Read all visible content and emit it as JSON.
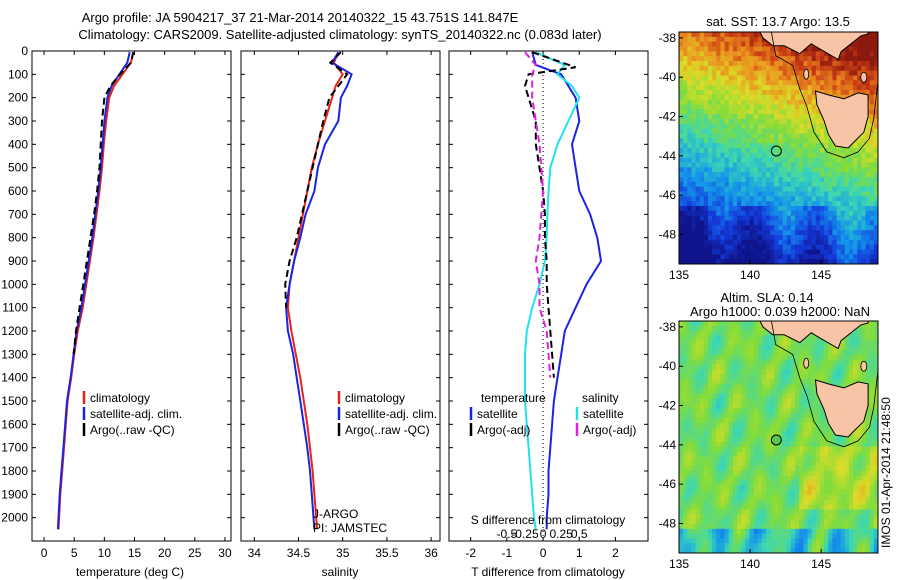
{
  "figure": {
    "title_line1": "Argo profile: JA 5904217_37 21-Mar-2014 20140322_15 43.751S 141.847E",
    "title_line2": "Climatology: CARS2009. Satellite-adjusted climatology: synTS_20140322.nc (0.083d later)",
    "credit": "IMOS 01-Apr-2014 21:48:50",
    "footer_line1": "J-ARGO",
    "footer_line2": "PI: JAMSTEC",
    "colors": {
      "climatology": "#e8231a",
      "satellite": "#1a25e0",
      "argo": "#000000",
      "t_sat": "#1a25e0",
      "s_sat": "#22e0ee",
      "s_argo": "#e020e0"
    }
  },
  "chart_data": [
    {
      "type": "line",
      "xlabel": "temperature (deg C)",
      "ylim": [
        2100,
        0
      ],
      "xlim": [
        -2,
        31
      ],
      "xticks": [
        0,
        5,
        10,
        15,
        20,
        25,
        30
      ],
      "yticks": [
        0,
        100,
        200,
        300,
        400,
        500,
        600,
        700,
        800,
        900,
        1000,
        1100,
        1200,
        1300,
        1400,
        1500,
        1600,
        1700,
        1800,
        1900,
        2000
      ],
      "legend": [
        "climatology",
        "satellite-adj. clim.",
        "Argo(..raw -QC)"
      ],
      "series": [
        {
          "name": "climatology",
          "color": "#e8231a",
          "dash": false,
          "x": [
            14.8,
            14.4,
            13.0,
            11.6,
            10.8,
            10.3,
            9.9,
            9.6,
            9.2,
            8.7,
            8.2,
            7.6,
            7.0,
            6.4,
            5.6,
            5.0,
            4.5,
            3.9,
            3.6,
            3.3,
            3.0,
            2.7,
            2.5,
            2.4
          ],
          "y": [
            5,
            50,
            100,
            150,
            200,
            300,
            400,
            500,
            600,
            700,
            800,
            900,
            1000,
            1100,
            1200,
            1300,
            1400,
            1500,
            1600,
            1700,
            1800,
            1900,
            2000,
            2050
          ]
        },
        {
          "name": "satellite-adj. clim.",
          "color": "#1a25e0",
          "dash": false,
          "x": [
            14.2,
            13.8,
            12.5,
            11.2,
            10.5,
            10.0,
            9.7,
            9.4,
            9.0,
            8.5,
            8.0,
            7.4,
            6.8,
            6.2,
            5.4,
            4.9,
            4.4,
            3.8,
            3.5,
            3.2,
            2.9,
            2.6,
            2.4,
            2.3
          ],
          "y": [
            5,
            50,
            100,
            150,
            200,
            300,
            400,
            500,
            600,
            700,
            800,
            900,
            1000,
            1100,
            1200,
            1300,
            1400,
            1500,
            1600,
            1700,
            1800,
            1900,
            2000,
            2050
          ]
        },
        {
          "name": "Argo(..raw -QC)",
          "color": "#000000",
          "dash": true,
          "x": [
            14.8,
            14.4,
            12.6,
            11.0,
            10.0,
            9.6,
            9.4,
            9.2,
            8.8,
            8.3,
            7.7,
            7.1,
            6.5,
            5.9,
            5.3,
            4.9
          ],
          "y": [
            5,
            50,
            100,
            150,
            200,
            300,
            400,
            500,
            600,
            700,
            800,
            900,
            1000,
            1100,
            1200,
            1300
          ]
        }
      ]
    },
    {
      "type": "line",
      "xlabel": "salinity",
      "ylim": [
        2100,
        0
      ],
      "xlim": [
        33.85,
        36.1
      ],
      "xticks": [
        34,
        34.5,
        35,
        35.5,
        36
      ],
      "legend": [
        "climatology",
        "satellite-adj. clim.",
        "Argo(..raw -QC)"
      ],
      "series": [
        {
          "name": "climatology",
          "color": "#e8231a",
          "dash": false,
          "x": [
            34.95,
            34.9,
            35.0,
            34.92,
            34.88,
            34.8,
            34.72,
            34.65,
            34.6,
            34.55,
            34.5,
            34.45,
            34.4,
            34.38,
            34.42,
            34.47,
            34.52,
            34.56,
            34.6,
            34.63,
            34.66,
            34.68,
            34.7,
            34.71
          ],
          "y": [
            5,
            50,
            100,
            150,
            200,
            300,
            400,
            500,
            600,
            700,
            800,
            900,
            1000,
            1100,
            1200,
            1300,
            1400,
            1500,
            1600,
            1700,
            1800,
            1900,
            2000,
            2050
          ]
        },
        {
          "name": "satellite-adj. clim.",
          "color": "#1a25e0",
          "dash": false,
          "x": [
            34.95,
            34.88,
            35.1,
            35.05,
            34.98,
            34.95,
            34.8,
            34.72,
            34.68,
            34.58,
            34.52,
            34.45,
            34.4,
            34.36,
            34.38,
            34.44,
            34.48,
            34.52,
            34.56,
            34.6,
            34.63,
            34.65,
            34.67,
            34.68
          ],
          "y": [
            5,
            50,
            100,
            150,
            200,
            300,
            400,
            500,
            600,
            700,
            800,
            900,
            1000,
            1100,
            1200,
            1300,
            1400,
            1500,
            1600,
            1700,
            1800,
            1900,
            2000,
            2050
          ]
        },
        {
          "name": "Argo(..raw -QC)",
          "color": "#000000",
          "dash": true,
          "x": [
            34.98,
            34.86,
            35.05,
            34.95,
            34.85,
            34.78,
            34.72,
            34.66,
            34.6,
            34.54,
            34.48,
            34.4,
            34.35,
            34.36
          ],
          "y": [
            5,
            50,
            100,
            150,
            200,
            300,
            400,
            500,
            600,
            700,
            800,
            900,
            1000,
            1100
          ]
        }
      ]
    },
    {
      "type": "line",
      "xlabel": "T difference from climatology",
      "xlabel_top": "S difference from climatology",
      "ylim": [
        2100,
        0
      ],
      "xlim": [
        -2.6,
        2.9
      ],
      "xticks": [
        -2,
        -1,
        0,
        1,
        2
      ],
      "xticks_top": [
        -0.5,
        -0.25,
        0,
        0.25,
        0.5
      ],
      "legend_left_title": "temperature",
      "legend_right_title": "salinity",
      "legend_left": [
        "satellite",
        "Argo(-adj)"
      ],
      "legend_right": [
        "satellite",
        "Argo(-adj)"
      ],
      "series": [
        {
          "name": "T satellite",
          "color": "#1a25e0",
          "dash": false,
          "x": [
            -0.3,
            -0.2,
            0.5,
            0.7,
            0.9,
            1.0,
            0.8,
            0.9,
            1.0,
            1.3,
            1.5,
            1.6,
            1.2,
            0.9,
            0.6,
            0.5,
            0.4,
            0.3,
            0.25,
            0.2,
            0.15,
            0.15,
            0.1,
            0.1
          ],
          "y": [
            5,
            60,
            100,
            150,
            200,
            300,
            400,
            500,
            600,
            700,
            800,
            900,
            1000,
            1100,
            1200,
            1300,
            1400,
            1500,
            1600,
            1700,
            1800,
            1900,
            2000,
            2050
          ]
        },
        {
          "name": "S satellite",
          "color": "#22e0ee",
          "dash": false,
          "x": [
            -0.2,
            0.6,
            0.4,
            0.8,
            1.0,
            0.7,
            0.4,
            0.2,
            0.15,
            0.12,
            0.1,
            0.05,
            -0.1,
            -0.3,
            -0.45,
            -0.5,
            -0.5,
            -0.5,
            -0.45,
            -0.4,
            -0.35,
            -0.3,
            -0.25,
            -0.2
          ],
          "y": [
            5,
            60,
            100,
            150,
            200,
            300,
            400,
            500,
            600,
            700,
            800,
            900,
            1000,
            1100,
            1200,
            1300,
            1400,
            1500,
            1600,
            1700,
            1800,
            1900,
            2000,
            2050
          ]
        },
        {
          "name": "T Argo(-adj)",
          "color": "#000000",
          "dash": true,
          "x": [
            -0.3,
            0.9,
            -0.4,
            -0.5,
            -0.4,
            -0.2,
            -0.2,
            -0.1,
            0.0,
            0.05,
            0.05,
            0.1,
            0.1,
            0.15,
            0.2,
            0.25,
            0.3
          ],
          "y": [
            5,
            70,
            100,
            150,
            200,
            300,
            400,
            500,
            600,
            700,
            800,
            900,
            1000,
            1100,
            1200,
            1300,
            1400
          ]
        },
        {
          "name": "S Argo(-adj)",
          "color": "#e020e0",
          "dash": true,
          "x": [
            -0.5,
            -0.2,
            -0.3,
            -0.3,
            -0.2,
            -0.1,
            -0.05,
            0.0,
            -0.05,
            -0.1,
            -0.2,
            -0.1,
            -0.1,
            0.1,
            0.15,
            0.2
          ],
          "y": [
            5,
            60,
            100,
            200,
            300,
            400,
            500,
            600,
            700,
            800,
            900,
            1000,
            1100,
            1200,
            1300,
            1400
          ]
        }
      ]
    },
    {
      "type": "heatmap",
      "title": "sat. SST: 13.7  Argo: 13.5",
      "xlim": [
        135,
        149
      ],
      "ylim": [
        -49.5,
        -37.7
      ],
      "xticks": [
        135,
        140,
        145
      ],
      "yticks": [
        -38,
        -40,
        -42,
        -44,
        -46,
        -48
      ],
      "marker": {
        "lon": 141.847,
        "lat": -43.751
      }
    },
    {
      "type": "heatmap",
      "title_line1": "Altim. SLA: 0.14",
      "title_line2": "Argo h1000: 0.039 h2000: NaN",
      "xlim": [
        135,
        149
      ],
      "ylim": [
        -49.5,
        -37.7
      ],
      "xticks": [
        135,
        140,
        145
      ],
      "yticks": [
        -38,
        -40,
        -42,
        -44,
        -46,
        -48
      ],
      "marker": {
        "lon": 141.847,
        "lat": -43.751
      }
    }
  ]
}
